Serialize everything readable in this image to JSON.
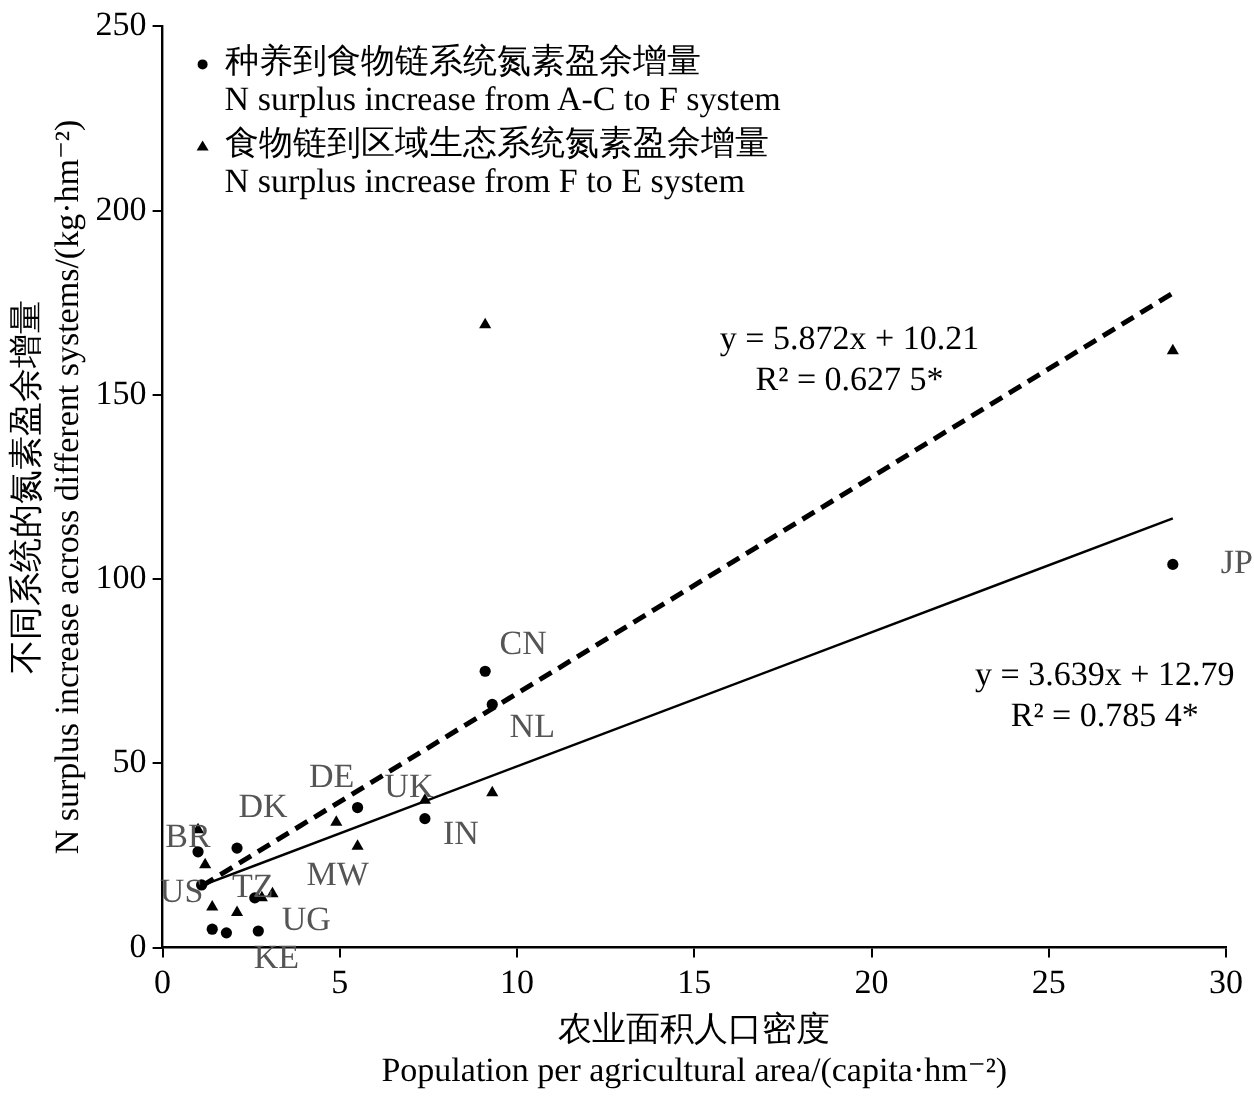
{
  "chart_data": {
    "type": "scatter",
    "xlabel": "农业面积人口密度\nPopulation per agricultural area/(capita·hm⁻²)",
    "ylabel": "不同系统的氮素盈余增量\nN surplus increase across different systems/(kg·hm⁻²)",
    "xlim": [
      0,
      30
    ],
    "xticks": [
      0,
      5,
      10,
      15,
      20,
      25,
      30
    ],
    "ylim": [
      0,
      250
    ],
    "yticks": [
      0,
      50,
      100,
      150,
      200,
      250
    ],
    "grid": false,
    "legend": "top left",
    "series": [
      {
        "name": "种养到食物链系统氮素盈余增量\nN surplus increase from A-C to F system",
        "color": "#000000",
        "marker": "circle",
        "x": [
          28.5,
          9.1,
          9.3,
          7.4,
          5.5,
          2.1,
          1.0,
          1.1,
          1.4,
          1.8,
          2.7,
          2.6
        ],
        "values": [
          104,
          75,
          66,
          35,
          38,
          27,
          26,
          17,
          5,
          4,
          4.5,
          13.5
        ],
        "value_labels": [
          "JP",
          "CN",
          "NL",
          "IN",
          "DE",
          "DK",
          "BR",
          "US",
          null,
          "KE",
          "UG",
          "TZ"
        ]
      },
      {
        "name": "食物链到区域生态系统氮素盈余增量\nN surplus increase from F to E system",
        "color": "#000000",
        "marker": "triangle",
        "x": [
          28.5,
          9.1,
          9.3,
          7.4,
          4.9,
          5.5,
          1.0,
          1.2,
          1.4,
          2.1,
          2.8,
          3.1
        ],
        "values": [
          162,
          169,
          42,
          40,
          34,
          27.5,
          32,
          22.5,
          11,
          9.5,
          13.5,
          14.6
        ],
        "value_labels": [
          null,
          null,
          null,
          "UK",
          null,
          "MW",
          null,
          null,
          null,
          null,
          null,
          null
        ]
      },
      {
        "type": "line",
        "color": "#000000",
        "marker": "none",
        "line_style": "dashed",
        "x": [
          1.1,
          28.5
        ],
        "values": [
          16.7,
          177.6
        ]
      },
      {
        "type": "line",
        "color": "#000000",
        "marker": "none",
        "line_style": "solid",
        "x": [
          1.1,
          28.5
        ],
        "values": [
          16.8,
          116.5
        ]
      }
    ],
    "annotations": [
      "y = 5.872x + 10.21",
      "R² = 0.627 5*",
      "y = 3.639x + 12.79",
      "R² = 0.785 4*"
    ]
  }
}
